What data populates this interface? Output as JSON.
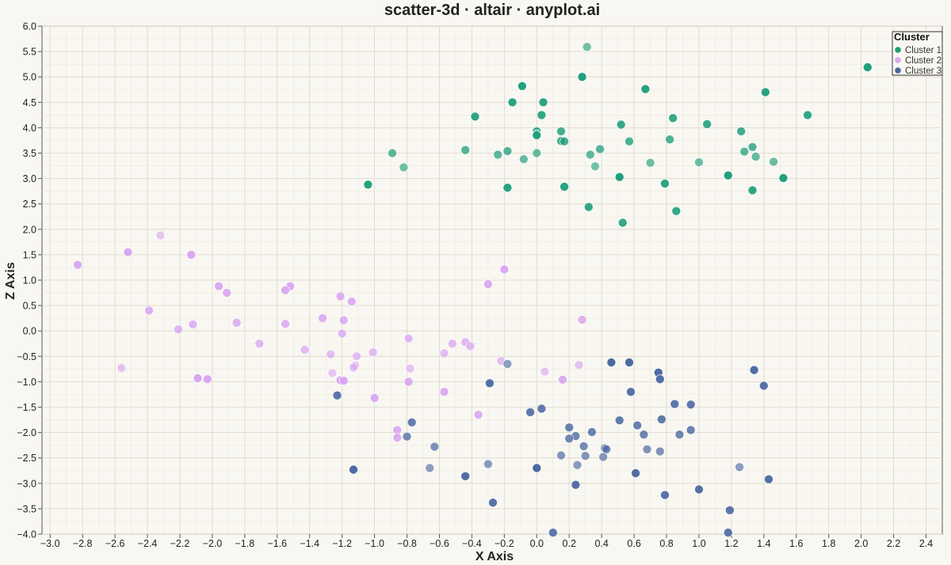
{
  "chart_data": {
    "type": "scatter",
    "title": "scatter-3d · altair · anyplot.ai",
    "xlabel": "X Axis",
    "ylabel": "Z Axis",
    "xlim": [
      -3.05,
      2.5
    ],
    "ylim": [
      -4.0,
      6.0
    ],
    "x_ticks": [
      -3.0,
      -2.8,
      -2.6,
      -2.4,
      -2.2,
      -2.0,
      -1.8,
      -1.6,
      -1.4,
      -1.2,
      -1.0,
      -0.8,
      -0.6,
      -0.4,
      -0.2,
      0.0,
      0.2,
      0.4,
      0.6,
      0.8,
      1.0,
      1.2,
      1.4,
      1.6,
      1.8,
      2.0,
      2.2,
      2.4
    ],
    "y_ticks": [
      -4.0,
      -3.5,
      -3.0,
      -2.5,
      -2.0,
      -1.5,
      -1.0,
      -0.5,
      0.0,
      0.5,
      1.0,
      1.5,
      2.0,
      2.5,
      3.0,
      3.5,
      4.0,
      4.5,
      5.0,
      5.5,
      6.0
    ],
    "grid": true,
    "legend": {
      "title": "Cluster",
      "placement": "top-right"
    },
    "series": [
      {
        "name": "Cluster 1",
        "color": "#1e9e7a",
        "points": [
          [
            0.31,
            5.59
          ],
          [
            2.04,
            5.19
          ],
          [
            0.28,
            5.0
          ],
          [
            -0.09,
            4.82
          ],
          [
            0.67,
            4.76
          ],
          [
            1.41,
            4.7
          ],
          [
            -0.15,
            4.5
          ],
          [
            0.04,
            4.5
          ],
          [
            -0.38,
            4.22
          ],
          [
            0.03,
            4.25
          ],
          [
            1.67,
            4.25
          ],
          [
            0.84,
            4.19
          ],
          [
            0.52,
            4.06
          ],
          [
            1.05,
            4.07
          ],
          [
            0.0,
            3.93
          ],
          [
            0.0,
            3.87
          ],
          [
            0.0,
            3.85
          ],
          [
            1.26,
            3.93
          ],
          [
            0.15,
            3.93
          ],
          [
            0.15,
            3.74
          ],
          [
            0.17,
            3.73
          ],
          [
            0.57,
            3.73
          ],
          [
            0.82,
            3.77
          ],
          [
            1.33,
            3.62
          ],
          [
            -0.44,
            3.56
          ],
          [
            -0.18,
            3.54
          ],
          [
            0.39,
            3.58
          ],
          [
            1.28,
            3.53
          ],
          [
            -0.89,
            3.5
          ],
          [
            -0.24,
            3.47
          ],
          [
            0.33,
            3.47
          ],
          [
            1.35,
            3.43
          ],
          [
            -0.08,
            3.38
          ],
          [
            0.0,
            3.5
          ],
          [
            1.46,
            3.33
          ],
          [
            0.7,
            3.31
          ],
          [
            1.0,
            3.32
          ],
          [
            -0.82,
            3.22
          ],
          [
            0.36,
            3.24
          ],
          [
            0.51,
            3.03
          ],
          [
            1.18,
            3.06
          ],
          [
            1.52,
            3.01
          ],
          [
            -1.04,
            2.88
          ],
          [
            -0.18,
            2.82
          ],
          [
            0.17,
            2.84
          ],
          [
            0.79,
            2.9
          ],
          [
            1.33,
            2.77
          ],
          [
            0.32,
            2.44
          ],
          [
            0.86,
            2.36
          ],
          [
            0.53,
            2.13
          ]
        ]
      },
      {
        "name": "Cluster 2",
        "color": "#d9a6f0",
        "points": [
          [
            -2.32,
            1.88
          ],
          [
            -2.52,
            1.55
          ],
          [
            -2.13,
            1.5
          ],
          [
            -2.83,
            1.3
          ],
          [
            -0.2,
            1.21
          ],
          [
            -1.52,
            0.88
          ],
          [
            -1.96,
            0.88
          ],
          [
            -0.3,
            0.92
          ],
          [
            -1.55,
            0.8
          ],
          [
            -1.91,
            0.75
          ],
          [
            -1.21,
            0.68
          ],
          [
            -1.14,
            0.58
          ],
          [
            -2.39,
            0.4
          ],
          [
            -1.32,
            0.25
          ],
          [
            -1.19,
            0.21
          ],
          [
            0.28,
            0.22
          ],
          [
            -1.55,
            0.14
          ],
          [
            -1.85,
            0.16
          ],
          [
            -2.12,
            0.13
          ],
          [
            -2.21,
            0.03
          ],
          [
            -1.2,
            -0.05
          ],
          [
            -0.79,
            -0.15
          ],
          [
            -1.71,
            -0.25
          ],
          [
            -0.52,
            -0.25
          ],
          [
            -0.44,
            -0.22
          ],
          [
            -0.41,
            -0.3
          ],
          [
            -1.43,
            -0.37
          ],
          [
            -1.01,
            -0.42
          ],
          [
            -0.57,
            -0.44
          ],
          [
            -1.27,
            -0.46
          ],
          [
            -1.11,
            -0.5
          ],
          [
            -0.22,
            -0.59
          ],
          [
            0.26,
            -0.67
          ],
          [
            -1.12,
            -0.68
          ],
          [
            -1.13,
            -0.72
          ],
          [
            -2.56,
            -0.73
          ],
          [
            -0.78,
            -0.74
          ],
          [
            0.05,
            -0.8
          ],
          [
            -1.26,
            -0.83
          ],
          [
            -2.09,
            -0.93
          ],
          [
            -2.03,
            -0.95
          ],
          [
            -1.21,
            -0.97
          ],
          [
            -1.19,
            -0.98
          ],
          [
            0.16,
            -0.96
          ],
          [
            -0.79,
            -1.0
          ],
          [
            -0.57,
            -1.2
          ],
          [
            -1.0,
            -1.32
          ],
          [
            -0.36,
            -1.65
          ],
          [
            -0.86,
            -1.95
          ],
          [
            -0.86,
            -2.1
          ]
        ]
      },
      {
        "name": "Cluster 3",
        "color": "#4a67a0",
        "points": [
          [
            -0.18,
            -0.65
          ],
          [
            0.46,
            -0.62
          ],
          [
            0.57,
            -0.62
          ],
          [
            0.75,
            -0.82
          ],
          [
            1.34,
            -0.77
          ],
          [
            0.76,
            -0.95
          ],
          [
            -0.29,
            -1.03
          ],
          [
            1.4,
            -1.08
          ],
          [
            0.58,
            -1.2
          ],
          [
            -1.23,
            -1.27
          ],
          [
            0.85,
            -1.44
          ],
          [
            0.95,
            -1.45
          ],
          [
            0.03,
            -1.53
          ],
          [
            -0.04,
            -1.6
          ],
          [
            0.77,
            -1.74
          ],
          [
            0.51,
            -1.76
          ],
          [
            -0.77,
            -1.8
          ],
          [
            0.62,
            -1.86
          ],
          [
            0.2,
            -1.9
          ],
          [
            0.95,
            -1.95
          ],
          [
            0.34,
            -1.99
          ],
          [
            0.66,
            -2.04
          ],
          [
            0.88,
            -2.04
          ],
          [
            0.24,
            -2.07
          ],
          [
            0.2,
            -2.12
          ],
          [
            -0.8,
            -2.08
          ],
          [
            0.29,
            -2.27
          ],
          [
            0.42,
            -2.31
          ],
          [
            0.43,
            -2.33
          ],
          [
            -0.63,
            -2.28
          ],
          [
            0.68,
            -2.33
          ],
          [
            0.76,
            -2.37
          ],
          [
            0.15,
            -2.45
          ],
          [
            0.3,
            -2.46
          ],
          [
            0.41,
            -2.48
          ],
          [
            0.25,
            -2.64
          ],
          [
            -0.3,
            -2.62
          ],
          [
            1.25,
            -2.68
          ],
          [
            -0.66,
            -2.7
          ],
          [
            0.0,
            -2.7
          ],
          [
            -1.13,
            -2.73
          ],
          [
            0.61,
            -2.8
          ],
          [
            -0.44,
            -2.86
          ],
          [
            1.43,
            -2.92
          ],
          [
            0.24,
            -3.03
          ],
          [
            1.0,
            -3.12
          ],
          [
            0.79,
            -3.23
          ],
          [
            -0.27,
            -3.38
          ],
          [
            1.19,
            -3.53
          ],
          [
            1.18,
            -3.97
          ],
          [
            0.1,
            -3.97
          ]
        ]
      }
    ]
  }
}
